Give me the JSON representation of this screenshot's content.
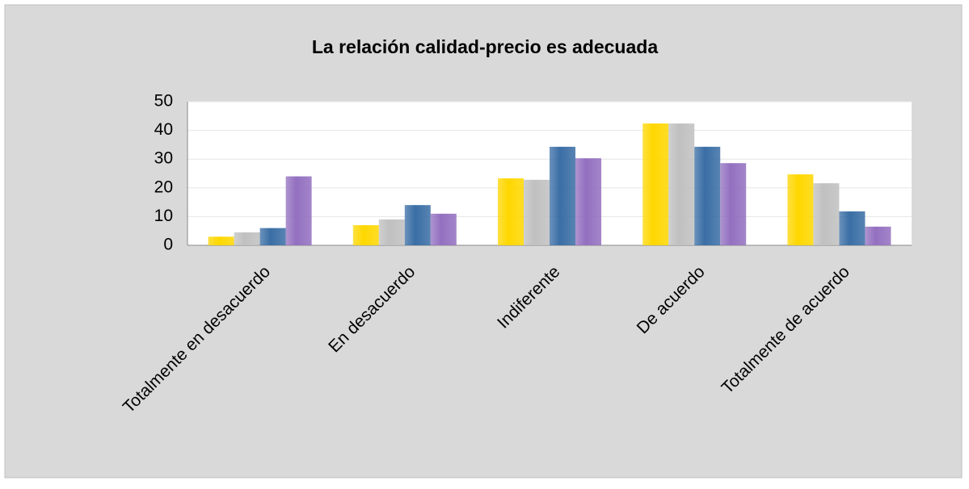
{
  "chart_data": {
    "type": "bar",
    "title": "La relación calidad-precio es adecuada",
    "categories": [
      "Totalmente en desacuerdo",
      "En desacuerdo",
      "Indiferente",
      "De acuerdo",
      "Totalmente de acuerdo"
    ],
    "series": [
      {
        "color": "#ffd700",
        "values": [
          3,
          7,
          23.3,
          42.4,
          24.7
        ]
      },
      {
        "color": "#c0c0c0",
        "values": [
          4.5,
          9,
          22.8,
          42.4,
          21.6
        ]
      },
      {
        "color": "#3a6ea5",
        "values": [
          6,
          14,
          34.3,
          34.3,
          11.8
        ]
      },
      {
        "color": "#9370c0",
        "values": [
          24,
          11,
          30.3,
          28.6,
          6.5
        ]
      }
    ],
    "ylim": [
      0,
      50
    ],
    "yticks": [
      0,
      10,
      20,
      30,
      40,
      50
    ],
    "grid": true
  }
}
